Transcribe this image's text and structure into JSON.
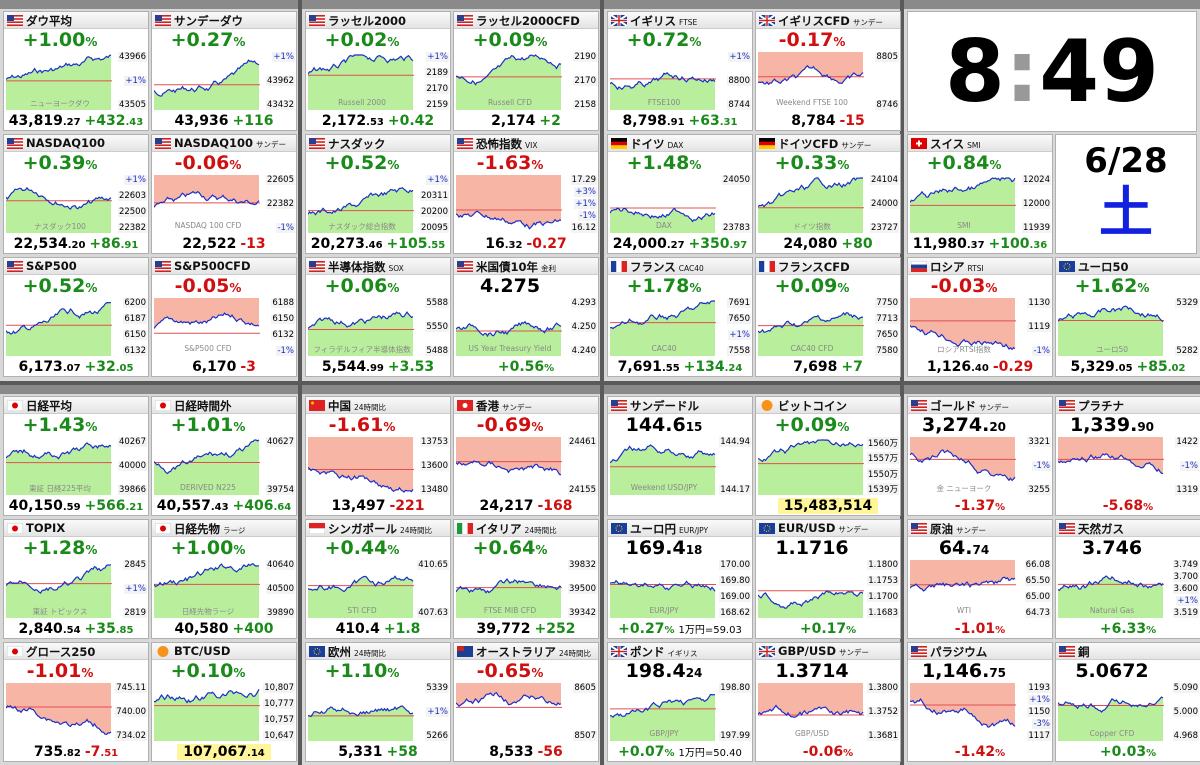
{
  "clock": {
    "hour": "8",
    "sep": ":",
    "minute": "49",
    "date": "6/28",
    "weekday": "土"
  },
  "tiles": [
    {
      "name": "ダウ平均",
      "top": "+1.00",
      "top_small": "%",
      "bottom": "43,819",
      "bottom_small": ".27",
      "change": "+432",
      "change_small": ".43",
      "axis": [
        "43966",
        "+1%",
        "43505"
      ],
      "wm": "ニューヨークダウ"
    },
    {
      "name": "サンデーダウ",
      "top": "+0.27",
      "top_small": "%",
      "bottom": "43,936",
      "change": "+116",
      "axis": [
        "+1%",
        "43962",
        "43432"
      ]
    },
    {
      "name": "NASDAQ100",
      "top": "+0.39",
      "top_small": "%",
      "bottom": "22,534",
      "bottom_small": ".20",
      "change": "+86",
      "change_small": ".91",
      "axis": [
        "+1%",
        "22603",
        "22500",
        "22382"
      ],
      "wm": "ナスダック100"
    },
    {
      "name": "NASDAQ100",
      "sub": "サンデー",
      "top": "-0.06",
      "top_small": "%",
      "bottom": "22,522",
      "change": "-13",
      "axis": [
        "22605",
        "22382",
        "-1%"
      ],
      "wm": "NASDAQ 100 CFD"
    },
    {
      "name": "S&P500",
      "top": "+0.52",
      "top_small": "%",
      "bottom": "6,173",
      "bottom_small": ".07",
      "change": "+32",
      "change_small": ".05",
      "axis": [
        "6200",
        "6187",
        "6150",
        "6132"
      ]
    },
    {
      "name": "S&P500CFD",
      "top": "-0.05",
      "top_small": "%",
      "bottom": "6,170",
      "change": "-3",
      "axis": [
        "6188",
        "6150",
        "6132",
        "-1%"
      ],
      "wm": "S&P500 CFD"
    },
    {
      "name": "ラッセル2000",
      "top": "+0.02",
      "top_small": "%",
      "bottom": "2,172",
      "bottom_small": ".53",
      "change": "+0.42",
      "axis": [
        "+1%",
        "2189",
        "2170",
        "2159"
      ],
      "wm": "Russell 2000"
    },
    {
      "name": "ラッセル2000CFD",
      "top": "+0.09",
      "top_small": "%",
      "bottom": "2,174",
      "change": "+2",
      "axis": [
        "2190",
        "2170",
        "2158"
      ],
      "wm": "Russell CFD"
    },
    {
      "name": "ナスダック",
      "top": "+0.52",
      "top_small": "%",
      "bottom": "20,273",
      "bottom_small": ".46",
      "change": "+105",
      "change_small": ".55",
      "axis": [
        "+1%",
        "20311",
        "20200",
        "20095"
      ],
      "wm": "ナスダック総合指数"
    },
    {
      "name": "恐怖指数",
      "sub": "VIX",
      "top": "-1.63",
      "top_small": "%",
      "bottom": "16",
      "bottom_small": ".32",
      "change": "-0.27",
      "axis": [
        "17.29",
        "+3%",
        "+1%",
        "-1%",
        "16.12"
      ]
    },
    {
      "name": "半導体指数",
      "sub": "SOX",
      "top": "+0.06",
      "top_small": "%",
      "bottom": "5,544",
      "bottom_small": ".99",
      "change": "+3.53",
      "axis": [
        "5588",
        "5550",
        "5488"
      ],
      "wm": "フィラデルフィア半導体指数"
    },
    {
      "name": "米国債10年",
      "sub": "金利",
      "top": "4.275",
      "bottom": "+0.56",
      "bottom_small": "%",
      "axis": [
        "4.293",
        "4.250",
        "4.240"
      ],
      "wm": "US Year Treasury Yield"
    },
    {
      "name": "イギリス",
      "sub": "FTSE",
      "top": "+0.72",
      "top_small": "%",
      "bottom": "8,798",
      "bottom_small": ".91",
      "change": "+63",
      "change_small": ".31",
      "axis": [
        "+1%",
        "8800",
        "8744"
      ],
      "wm": "FTSE100"
    },
    {
      "name": "イギリスCFD",
      "sub": "サンデー",
      "top": "-0.17",
      "top_small": "%",
      "bottom": "8,784",
      "change": "-15",
      "axis": [
        "8805",
        "8746"
      ],
      "wm": "Weekend FTSE 100"
    },
    {
      "name": "ドイツ",
      "sub": "DAX",
      "top": "+1.48",
      "top_small": "%",
      "bottom": "24,000",
      "bottom_small": ".27",
      "change": "+350",
      "change_small": ".97",
      "axis": [
        "24050",
        "23783"
      ],
      "wm": "DAX"
    },
    {
      "name": "ドイツCFD",
      "sub": "サンデー",
      "top": "+0.33",
      "top_small": "%",
      "bottom": "24,080",
      "change": "+80",
      "axis": [
        "24104",
        "24000",
        "23727"
      ],
      "wm": "ドイツ指数"
    },
    {
      "name": "フランス",
      "sub": "CAC40",
      "top": "+1.78",
      "top_small": "%",
      "bottom": "7,691",
      "bottom_small": ".55",
      "change": "+134",
      "change_small": ".24",
      "axis": [
        "7691",
        "7650",
        "+1%",
        "7558"
      ],
      "wm": "CAC40"
    },
    {
      "name": "フランスCFD",
      "top": "+0.09",
      "top_small": "%",
      "bottom": "7,698",
      "change": "+7",
      "axis": [
        "7750",
        "7713",
        "7650",
        "7580"
      ],
      "wm": "CAC40 CFD"
    },
    {
      "name": "スイス",
      "sub": "SMI",
      "top": "+0.84",
      "top_small": "%",
      "bottom": "11,980",
      "bottom_small": ".37",
      "change": "+100",
      "change_small": ".36",
      "axis": [
        "12024",
        "12000",
        "11939"
      ],
      "wm": "SMI"
    },
    {
      "name": "ロシア",
      "sub": "RTSI",
      "top": "-0.03",
      "top_small": "%",
      "bottom": "1,126",
      "bottom_small": ".40",
      "change": "-0.29",
      "axis": [
        "1130",
        "1119",
        "-1%"
      ],
      "wm": "ロシアRTSI指数"
    },
    {
      "name": "ユーロ50",
      "top": "+1.62",
      "top_small": "%",
      "bottom": "5,329",
      "bottom_small": ".05",
      "change": "+85",
      "change_small": ".02",
      "axis": [
        "5329",
        "5282"
      ],
      "wm": "ユーロ50"
    },
    {
      "name": "日経平均",
      "top": "+1.43",
      "top_small": "%",
      "bottom": "40,150",
      "bottom_small": ".59",
      "change": "+566",
      "change_small": ".21",
      "axis": [
        "40267",
        "40000",
        "39866"
      ],
      "wm": "東証 日経225平均"
    },
    {
      "name": "日経時間外",
      "top": "+1.01",
      "top_small": "%",
      "bottom": "40,557",
      "bottom_small": ".43",
      "change": "+406",
      "change_small": ".64",
      "axis": [
        "40627",
        "39754"
      ],
      "wm": "DERIVED N225"
    },
    {
      "name": "TOPIX",
      "top": "+1.28",
      "top_small": "%",
      "bottom": "2,840",
      "bottom_small": ".54",
      "change": "+35",
      "change_small": ".85",
      "axis": [
        "2845",
        "+1%",
        "2819"
      ],
      "wm": "東証 トピックス"
    },
    {
      "name": "日経先物",
      "sub": "ラージ",
      "top": "+1.00",
      "top_small": "%",
      "bottom": "40,580",
      "change": "+400",
      "axis": [
        "40640",
        "40500",
        "39890"
      ],
      "wm": "日経先物ラージ"
    },
    {
      "name": "グロース250",
      "top": "-1.01",
      "top_small": "%",
      "bottom": "735",
      "bottom_small": ".82",
      "change": "-7",
      "change_small": ".51",
      "axis": [
        "745.11",
        "740.00",
        "734.02"
      ]
    },
    {
      "name": "BTC/USD",
      "top": "+0.10",
      "top_small": "%",
      "bottom": "107,067",
      "bottom_small": ".14",
      "axis": [
        "10,807",
        "10,777",
        "10,757",
        "10,647"
      ]
    },
    {
      "name": "中国",
      "sub": "24時間比",
      "top": "-1.61",
      "top_small": "%",
      "bottom": "13,497",
      "change": "-221",
      "axis": [
        "13753",
        "13600",
        "13480"
      ]
    },
    {
      "name": "香港",
      "sub": "サンデー",
      "top": "-0.69",
      "top_small": "%",
      "bottom": "24,217",
      "change": "-168",
      "axis": [
        "24461",
        "24155"
      ]
    },
    {
      "name": "シンガポール",
      "sub": "24時間比",
      "top": "+0.44",
      "top_small": "%",
      "bottom": "410.4",
      "change": "+1.8",
      "axis": [
        "410.65",
        "407.63"
      ],
      "wm": "STI CFD"
    },
    {
      "name": "イタリア",
      "sub": "24時間比",
      "top": "+0.64",
      "top_small": "%",
      "bottom": "39,772",
      "change": "+252",
      "axis": [
        "39832",
        "39500",
        "39342"
      ],
      "wm": "FTSE MIB CFD"
    },
    {
      "name": "欧州",
      "sub": "24時間比",
      "top": "+1.10",
      "top_small": "%",
      "bottom": "5,331",
      "change": "+58",
      "axis": [
        "5339",
        "+1%",
        "5266"
      ]
    },
    {
      "name": "オーストラリア",
      "sub": "24時間比",
      "top": "-0.65",
      "top_small": "%",
      "bottom": "8,533",
      "change": "-56",
      "axis": [
        "8605",
        "8507"
      ]
    },
    {
      "name": "サンデードル",
      "top": "144.6",
      "top_small": "15",
      "axis": [
        "144.94",
        "144.17"
      ],
      "wm": "Weekend USD/JPY"
    },
    {
      "name": "ビットコイン",
      "top": "+0.09",
      "top_small": "%",
      "bottom": "15,483,514",
      "axis": [
        "1560万",
        "1557万",
        "1550万",
        "1539万"
      ]
    },
    {
      "name": "ユーロ円",
      "sub": "EUR/JPY",
      "top": "169.4",
      "top_small": "18",
      "bottom": "+0.27",
      "bottom_small": "%",
      "note": "1万円=59.03",
      "axis": [
        "170.00",
        "169.80",
        "169.00",
        "168.62"
      ],
      "wm": "EUR/JPY"
    },
    {
      "name": "EUR/USD",
      "sub": "サンデー",
      "top": "1.1716",
      "bottom": "+0.17",
      "bottom_small": "%",
      "axis": [
        "1.1800",
        "1.1753",
        "1.1700",
        "1.1683"
      ]
    },
    {
      "name": "ポンド",
      "sub": "イギリス",
      "top": "198.4",
      "top_small": "24",
      "bottom": "+0.07",
      "bottom_small": "%",
      "note": "1万円=50.40",
      "axis": [
        "198.80",
        "197.99"
      ],
      "wm": "GBP/JPY"
    },
    {
      "name": "GBP/USD",
      "sub": "サンデー",
      "top": "1.3714",
      "bottom": "-0.06",
      "bottom_small": "%",
      "axis": [
        "1.3800",
        "1.3752",
        "1.3681"
      ],
      "wm": "GBP/USD"
    },
    {
      "name": "ゴールド",
      "sub": "サンデー",
      "top": "3,274.",
      "top_small": "20",
      "bottom": "-1.37",
      "bottom_small": "%",
      "axis": [
        "3321",
        "-1%",
        "3255"
      ],
      "wm": "金 ニューヨーク"
    },
    {
      "name": "プラチナ",
      "top": "1,339.",
      "top_small": "90",
      "bottom": "-5.68",
      "bottom_small": "%",
      "axis": [
        "1422",
        "-1%",
        "1319"
      ]
    },
    {
      "name": "原油",
      "sub": "サンデー",
      "top": "64.",
      "top_small": "74",
      "bottom": "-1.01",
      "bottom_small": "%",
      "axis": [
        "66.08",
        "65.50",
        "65.00",
        "64.73"
      ],
      "wm": "WTI"
    },
    {
      "name": "天然ガス",
      "top": "3.746",
      "bottom": "+6.33",
      "bottom_small": "%",
      "axis": [
        "3.749",
        "3.700",
        "3.600",
        "+1%",
        "3.519"
      ],
      "wm": "Natural Gas"
    },
    {
      "name": "パラジウム",
      "top": "1,146.",
      "top_small": "75",
      "bottom": "-1.42",
      "bottom_small": "%",
      "axis": [
        "1193",
        "+1%",
        "1150",
        "-3%",
        "1117"
      ]
    },
    {
      "name": "銅",
      "top": "5.0672",
      "bottom": "+0.03",
      "bottom_small": "%",
      "axis": [
        "5.090",
        "5.000",
        "4.968"
      ],
      "wm": "Copper CFD"
    }
  ]
}
